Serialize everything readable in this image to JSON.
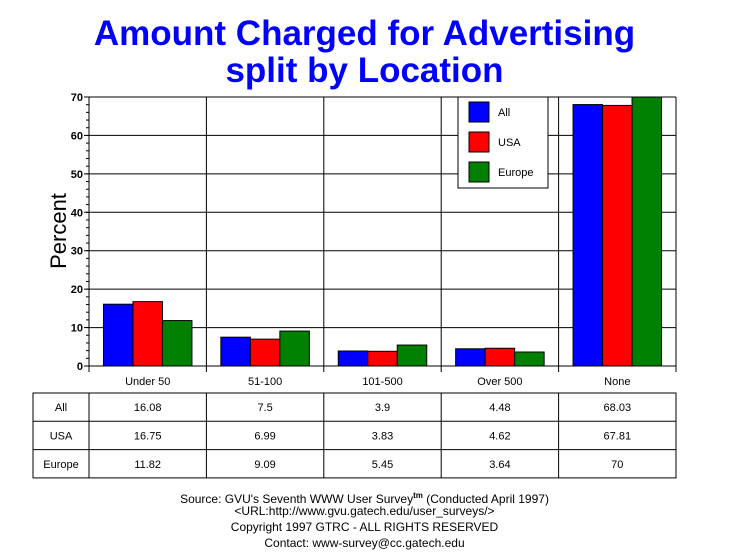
{
  "chart_data": {
    "type": "bar",
    "title": "Amount Charged for Advertising",
    "subtitle": "split by Location",
    "xlabel": "",
    "ylabel": "Percent",
    "ylim": [
      0,
      70
    ],
    "yticks": [
      0,
      10,
      20,
      30,
      40,
      50,
      60,
      70
    ],
    "grid": true,
    "legend_position": "top-right",
    "categories": [
      "Under 50",
      "51-100",
      "101-500",
      "Over 500",
      "None"
    ],
    "series": [
      {
        "name": "All",
        "color": "#0000ff",
        "values": [
          16.08,
          7.5,
          3.9,
          4.48,
          68.03
        ],
        "labels": [
          "16.08",
          "7.5",
          "3.9",
          "4.48",
          "68.03"
        ]
      },
      {
        "name": "USA",
        "color": "#ff0000",
        "values": [
          16.75,
          6.99,
          3.83,
          4.62,
          67.81
        ],
        "labels": [
          "16.75",
          "6.99",
          "3.83",
          "4.62",
          "67.81"
        ]
      },
      {
        "name": "Europe",
        "color": "#008000",
        "values": [
          11.82,
          9.09,
          5.45,
          3.64,
          70
        ],
        "labels": [
          "11.82",
          "9.09",
          "5.45",
          "3.64",
          "70"
        ]
      }
    ]
  },
  "footer": {
    "source": "Source: GVU's Seventh WWW User Survey",
    "tm": "tm",
    "conducted": " (Conducted April 1997)",
    "url": "<URL:http://www.gvu.gatech.edu/user_surveys/>",
    "copyright": "Copyright 1997 GTRC - ALL RIGHTS RESERVED",
    "contact": "Contact: www-survey@cc.gatech.edu"
  }
}
